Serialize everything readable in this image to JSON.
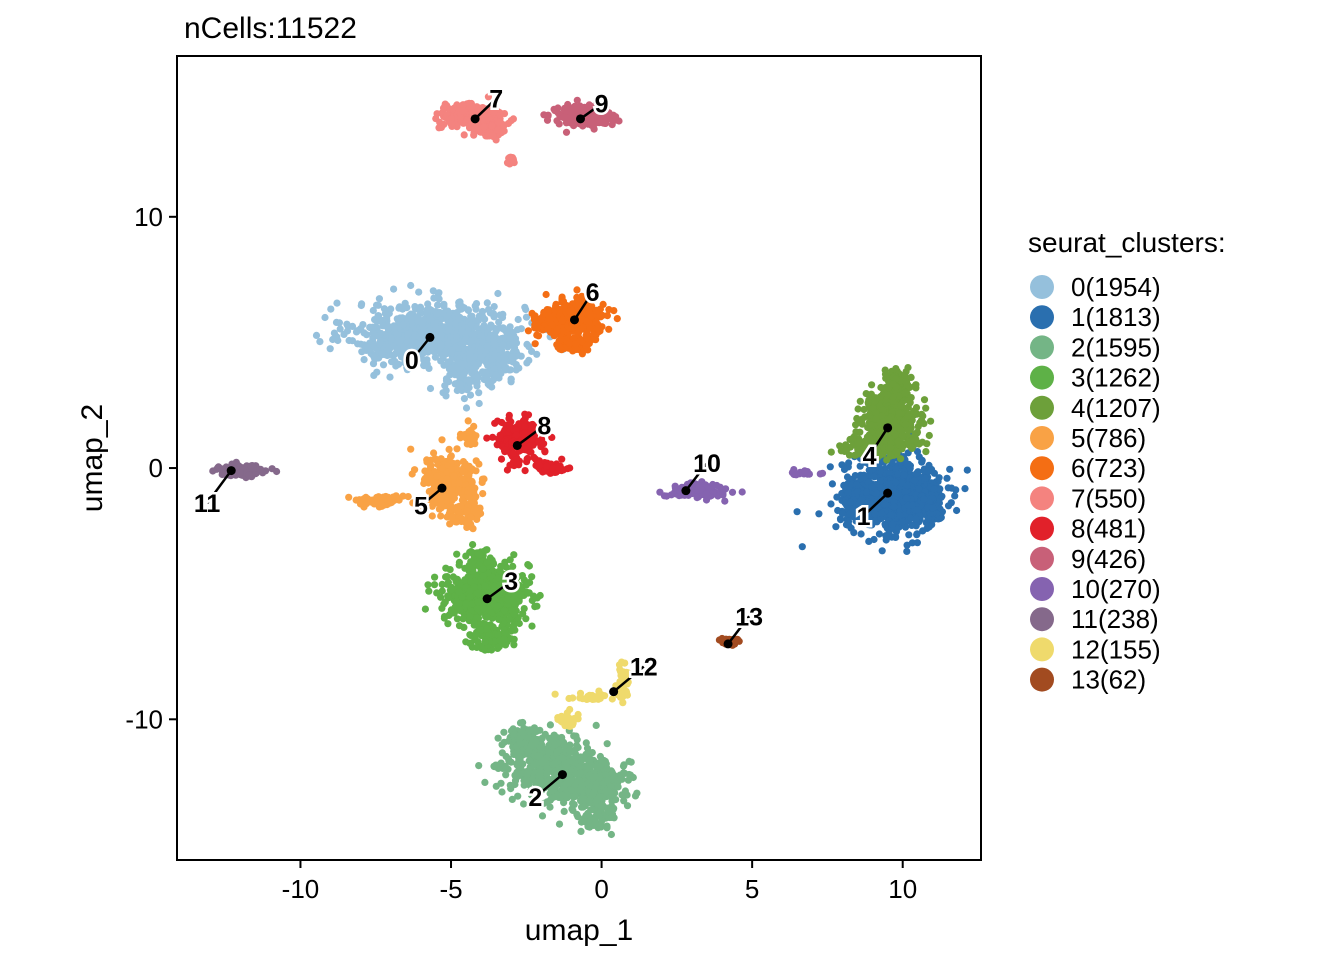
{
  "chart_data": {
    "type": "scatter",
    "title": "nCells:11522",
    "xlabel": "umap_1",
    "ylabel": "umap_2",
    "xlim": [
      -14.1,
      12.6
    ],
    "ylim": [
      -15.6,
      16.4
    ],
    "x_ticks": [
      -10,
      -5,
      0,
      5,
      10
    ],
    "y_ticks": [
      -10,
      0,
      10
    ],
    "grid": false,
    "legend_title": "seurat_clusters:",
    "legend_position": "right",
    "series": [
      {
        "name": "0(1954)",
        "cluster": "0",
        "color": "#95C0DC",
        "center": [
          -5.7,
          5.2
        ],
        "label_at": [
          -6.3,
          4.3
        ],
        "blobs": [
          [
            -5.4,
            5.3,
            2.8,
            1.3,
            0.7
          ],
          [
            -3.6,
            4.4,
            1.0,
            1.0,
            0.15
          ],
          [
            -4.6,
            3.6,
            0.6,
            0.9,
            0.08
          ],
          [
            -6.9,
            5.0,
            0.9,
            0.6,
            0.07
          ]
        ]
      },
      {
        "name": "1(1813)",
        "cluster": "1",
        "color": "#2A6FAF",
        "center": [
          9.5,
          -1.0
        ],
        "label_at": [
          8.7,
          -1.9
        ],
        "blobs": [
          [
            9.7,
            -1.1,
            1.55,
            1.45,
            0.8
          ],
          [
            8.5,
            -1.4,
            0.6,
            0.7,
            0.1
          ],
          [
            10.8,
            -1.6,
            0.5,
            0.6,
            0.1
          ]
        ]
      },
      {
        "name": "2(1595)",
        "cluster": "2",
        "color": "#74B586",
        "center": [
          -1.3,
          -12.2
        ],
        "label_at": [
          -2.2,
          -13.1
        ],
        "blobs": [
          [
            -1.6,
            -11.9,
            1.5,
            1.2,
            0.55
          ],
          [
            -0.4,
            -12.7,
            1.2,
            1.0,
            0.3
          ],
          [
            -2.6,
            -10.9,
            0.6,
            0.6,
            0.1
          ],
          [
            -0.1,
            -14.0,
            0.6,
            0.5,
            0.05
          ]
        ]
      },
      {
        "name": "3(1262)",
        "cluster": "3",
        "color": "#5EB147",
        "center": [
          -3.8,
          -5.2
        ],
        "label_at": [
          -3.0,
          -4.5
        ],
        "blobs": [
          [
            -3.8,
            -5.1,
            1.4,
            1.1,
            0.8
          ],
          [
            -3.7,
            -6.7,
            0.7,
            0.6,
            0.12
          ],
          [
            -4.1,
            -3.6,
            0.5,
            0.4,
            0.08
          ]
        ]
      },
      {
        "name": "4(1207)",
        "cluster": "4",
        "color": "#6DA03A",
        "center": [
          9.5,
          1.6
        ],
        "label_at": [
          8.9,
          0.5
        ],
        "blobs": [
          [
            9.6,
            1.8,
            1.0,
            1.1,
            0.6
          ],
          [
            9.8,
            3.2,
            0.5,
            0.6,
            0.25
          ],
          [
            8.9,
            0.8,
            0.9,
            0.4,
            0.15
          ]
        ]
      },
      {
        "name": "5(786)",
        "cluster": "5",
        "color": "#F9A245",
        "center": [
          -5.3,
          -0.8
        ],
        "label_at": [
          -6.0,
          -1.5
        ],
        "blobs": [
          [
            -5.0,
            -0.6,
            0.9,
            1.1,
            0.7
          ],
          [
            -4.5,
            -1.9,
            0.5,
            0.5,
            0.12
          ],
          [
            -7.4,
            -1.3,
            0.8,
            0.25,
            0.13
          ],
          [
            -4.4,
            1.3,
            0.4,
            0.4,
            0.05
          ]
        ]
      },
      {
        "name": "6(723)",
        "cluster": "6",
        "color": "#F46E14",
        "center": [
          -0.9,
          5.9
        ],
        "label_at": [
          -0.3,
          7.0
        ],
        "blobs": [
          [
            -0.9,
            5.9,
            1.0,
            0.8,
            0.7
          ],
          [
            -1.9,
            5.8,
            0.4,
            0.4,
            0.15
          ],
          [
            -0.9,
            4.9,
            0.6,
            0.3,
            0.15
          ]
        ]
      },
      {
        "name": "7(550)",
        "cluster": "7",
        "color": "#F4837F",
        "center": [
          -4.2,
          13.9
        ],
        "label_at": [
          -3.5,
          14.7
        ],
        "blobs": [
          [
            -4.4,
            14.0,
            1.0,
            0.5,
            0.7
          ],
          [
            -3.7,
            13.5,
            0.5,
            0.4,
            0.25
          ],
          [
            -3.0,
            12.2,
            0.15,
            0.2,
            0.05
          ]
        ]
      },
      {
        "name": "8(481)",
        "cluster": "8",
        "color": "#E1212A",
        "center": [
          -2.8,
          0.9
        ],
        "label_at": [
          -1.9,
          1.7
        ],
        "blobs": [
          [
            -2.8,
            1.1,
            0.8,
            0.9,
            0.75
          ],
          [
            -1.7,
            0.0,
            0.5,
            0.2,
            0.25
          ]
        ]
      },
      {
        "name": "9(426)",
        "cluster": "9",
        "color": "#C86078",
        "center": [
          -0.7,
          13.9
        ],
        "label_at": [
          0.0,
          14.5
        ],
        "blobs": [
          [
            -0.6,
            14.0,
            0.9,
            0.4,
            1.0
          ]
        ]
      },
      {
        "name": "10(270)",
        "cluster": "10",
        "color": "#8563B0",
        "center": [
          2.8,
          -0.9
        ],
        "label_at": [
          3.5,
          0.2
        ],
        "blobs": [
          [
            3.2,
            -0.9,
            1.0,
            0.3,
            0.9
          ],
          [
            6.7,
            -0.2,
            0.6,
            0.12,
            0.1
          ]
        ]
      },
      {
        "name": "11(238)",
        "cluster": "11",
        "color": "#85698B",
        "center": [
          -12.3,
          -0.1
        ],
        "label_at": [
          -13.1,
          -1.4
        ],
        "blobs": [
          [
            -11.9,
            -0.1,
            0.8,
            0.22,
            1.0
          ]
        ]
      },
      {
        "name": "12(155)",
        "cluster": "12",
        "color": "#EFDA6C",
        "center": [
          0.4,
          -8.9
        ],
        "label_at": [
          1.4,
          -7.9
        ],
        "blobs": [
          [
            0.7,
            -8.6,
            0.2,
            0.7,
            0.45
          ],
          [
            -0.4,
            -9.1,
            0.9,
            0.2,
            0.3
          ],
          [
            -1.2,
            -10.1,
            0.4,
            0.3,
            0.25
          ]
        ]
      },
      {
        "name": "13(62)",
        "cluster": "13",
        "color": "#A24B20",
        "center": [
          4.2,
          -7.0
        ],
        "label_at": [
          4.9,
          -5.9
        ],
        "blobs": [
          [
            4.2,
            -6.9,
            0.3,
            0.12,
            1.0
          ]
        ]
      }
    ]
  }
}
